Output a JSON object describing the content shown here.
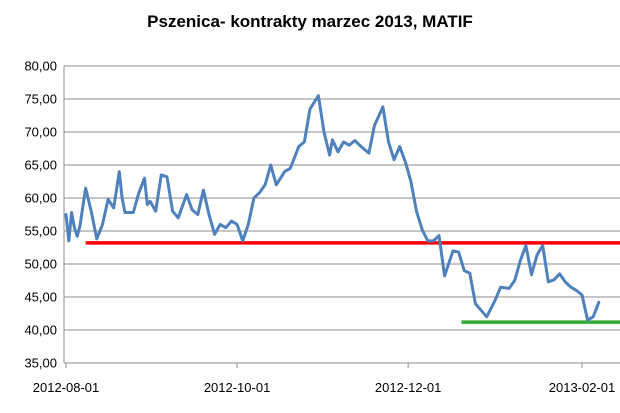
{
  "chart_data": {
    "type": "line",
    "title": "Pszenica- kontrakty marzec 2013, MATIF",
    "xlabel": "",
    "ylabel": "",
    "ylim": [
      35,
      80
    ],
    "yticks": [
      "80,00",
      "75,00",
      "70,00",
      "65,00",
      "60,00",
      "55,00",
      "50,00",
      "45,00",
      "40,00",
      "35,00"
    ],
    "ytick_values": [
      80,
      75,
      70,
      65,
      60,
      55,
      50,
      45,
      40,
      35
    ],
    "xticks": [
      "2012-08-01",
      "2012-10-01",
      "2012-12-01",
      "2013-02-01"
    ],
    "xtick_dates": [
      "2012-08-01",
      "2012-10-01",
      "2012-12-01",
      "2013-02-01"
    ],
    "grid": "horizontal",
    "legend": "none",
    "series": [
      {
        "color": "#4f81bd",
        "x": [
          "2012-08-01",
          "2012-08-02",
          "2012-08-03",
          "2012-08-04",
          "2012-08-05",
          "2012-08-06",
          "2012-08-08",
          "2012-08-10",
          "2012-08-12",
          "2012-08-14",
          "2012-08-16",
          "2012-08-18",
          "2012-08-20",
          "2012-08-21",
          "2012-08-22",
          "2012-08-25",
          "2012-08-27",
          "2012-08-29",
          "2012-08-30",
          "2012-08-31",
          "2012-09-02",
          "2012-09-04",
          "2012-09-06",
          "2012-09-08",
          "2012-09-10",
          "2012-09-13",
          "2012-09-15",
          "2012-09-17",
          "2012-09-19",
          "2012-09-21",
          "2012-09-23",
          "2012-09-25",
          "2012-09-27",
          "2012-09-29",
          "2012-10-01",
          "2012-10-03",
          "2012-10-05",
          "2012-10-07",
          "2012-10-09",
          "2012-10-11",
          "2012-10-13",
          "2012-10-15",
          "2012-10-18",
          "2012-10-20",
          "2012-10-23",
          "2012-10-25",
          "2012-10-27",
          "2012-10-30",
          "2012-11-01",
          "2012-11-03",
          "2012-11-04",
          "2012-11-06",
          "2012-11-08",
          "2012-11-10",
          "2012-11-12",
          "2012-11-15",
          "2012-11-17",
          "2012-11-19",
          "2012-11-22",
          "2012-11-24",
          "2012-11-26",
          "2012-11-28",
          "2012-11-30",
          "2012-12-02",
          "2012-12-04",
          "2012-12-06",
          "2012-12-08",
          "2012-12-10",
          "2012-12-12",
          "2012-12-14",
          "2012-12-17",
          "2012-12-19",
          "2012-12-21",
          "2012-12-23",
          "2012-12-25",
          "2012-12-27",
          "2012-12-29",
          "2013-01-01",
          "2013-01-03",
          "2013-01-06",
          "2013-01-08",
          "2013-01-10",
          "2013-01-12",
          "2013-01-14",
          "2013-01-16",
          "2013-01-18",
          "2013-01-20",
          "2013-01-22",
          "2013-01-24",
          "2013-01-26",
          "2013-01-28",
          "2013-01-30",
          "2013-02-01",
          "2013-02-03",
          "2013-02-05",
          "2013-02-07"
        ],
        "y": [
          57.5,
          53.5,
          57.8,
          55.5,
          54.2,
          55.8,
          61.5,
          58,
          53.8,
          56,
          59.8,
          58.5,
          64,
          60,
          57.8,
          57.8,
          60.8,
          63,
          59,
          59.5,
          58,
          63.5,
          63.2,
          58,
          57,
          60.5,
          58.2,
          57.5,
          61.2,
          57.5,
          54.5,
          56,
          55.5,
          56.5,
          56,
          53.5,
          56,
          60,
          60.8,
          62,
          65,
          62,
          64,
          64.5,
          67.8,
          68.5,
          73.5,
          75.5,
          70,
          66.5,
          68.8,
          67,
          68.5,
          68,
          68.7,
          67.5,
          66.8,
          71,
          73.8,
          68.5,
          65.8,
          67.8,
          65.5,
          62.5,
          58,
          55.2,
          53.5,
          53.5,
          54.3,
          48.2,
          52,
          51.8,
          49,
          48.6,
          44,
          43,
          42,
          44.5,
          46.5,
          46.3,
          47.5,
          50.5,
          52.8,
          48.4,
          51.4,
          52.8,
          47.3,
          47.6,
          48.5,
          47.3,
          46.5,
          46,
          45.3,
          41.5,
          42,
          44.2
        ]
      }
    ],
    "annotations": [
      {
        "type": "hline",
        "y": 53.2,
        "color": "#ff0000",
        "x_from": "2012-08-08",
        "x_to": "2013-02-07"
      },
      {
        "type": "hline",
        "y": 41.2,
        "color": "#33aa33",
        "x_from": "2012-12-20",
        "x_to": "2013-02-07"
      }
    ]
  }
}
